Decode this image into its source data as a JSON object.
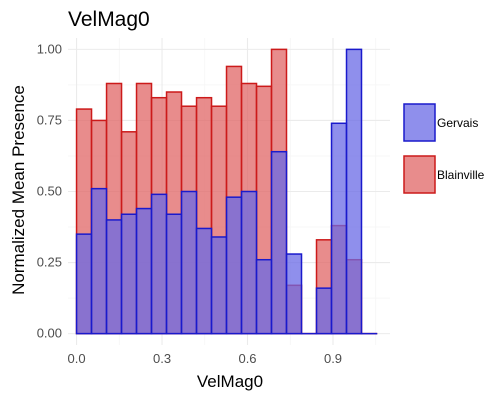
{
  "chart_data": {
    "type": "bar",
    "title": "VelMag0",
    "xlabel": "VelMag0",
    "ylabel": "Normalized Mean Presence",
    "xlim": [
      -0.03,
      1.1
    ],
    "ylim": [
      -0.04,
      1.04
    ],
    "x_ticks": [
      0.0,
      0.3,
      0.6,
      0.9
    ],
    "x_tick_labels": [
      "0.0",
      "0.3",
      "0.6",
      "0.9"
    ],
    "y_ticks": [
      0.0,
      0.25,
      0.5,
      0.75,
      1.0
    ],
    "y_tick_labels": [
      "0.00",
      "0.25",
      "0.50",
      "0.75",
      "1.00"
    ],
    "bin_width": 0.0526,
    "bin_centers": [
      0.0263,
      0.0789,
      0.1316,
      0.1842,
      0.2368,
      0.2895,
      0.3421,
      0.3947,
      0.4474,
      0.5,
      0.5526,
      0.6053,
      0.6579,
      0.7105,
      0.7632,
      0.8158,
      0.8684,
      0.9211,
      0.9737,
      1.0263
    ],
    "grid": true,
    "legend_position": "right",
    "series": [
      {
        "name": "Blainville",
        "fill": "#e06666",
        "stroke": "#cc1a1a",
        "values": [
          0.79,
          0.75,
          0.88,
          0.71,
          0.88,
          0.83,
          0.85,
          0.8,
          0.83,
          0.8,
          0.94,
          0.88,
          0.87,
          1.0,
          0.17,
          0.0,
          0.33,
          0.38,
          0.26,
          0.0
        ]
      },
      {
        "name": "Gervais",
        "fill": "#6a6ae6",
        "stroke": "#1a1acc",
        "values": [
          0.35,
          0.51,
          0.4,
          0.42,
          0.44,
          0.49,
          0.42,
          0.5,
          0.37,
          0.34,
          0.48,
          0.5,
          0.26,
          0.64,
          0.28,
          0.0,
          0.16,
          0.74,
          1.0,
          0.0
        ]
      }
    ],
    "legend_order": [
      "Gervais",
      "Blainville"
    ]
  },
  "colors": {
    "background": "#ffffff",
    "grid_major": "#ebebeb",
    "grid_minor": "#f5f5f5",
    "text": "#000000",
    "tick_text": "#4d4d4d"
  }
}
